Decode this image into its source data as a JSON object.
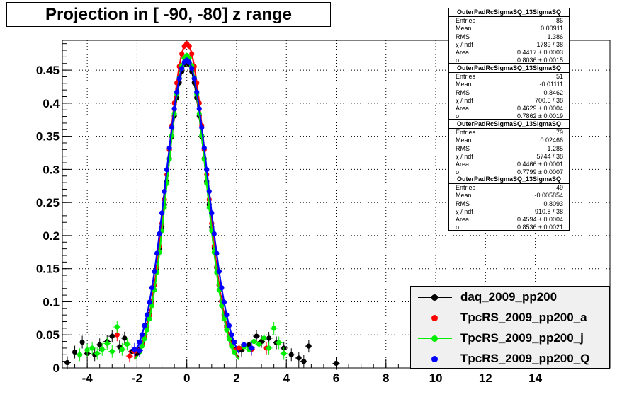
{
  "title": "Projection in [ -90, -80] z range",
  "chart_data": {
    "type": "scatter",
    "xlim": [
      -5,
      17
    ],
    "ylim": [
      0,
      0.495
    ],
    "x_ticks": [
      -4,
      -2,
      0,
      2,
      4,
      6,
      8,
      10,
      12,
      14
    ],
    "y_ticks": [
      0,
      0.05,
      0.1,
      0.15,
      0.2,
      0.25,
      0.3,
      0.35,
      0.4,
      0.45
    ],
    "y_tick_labels": [
      "0",
      "0.05",
      "0.1",
      "0.15",
      "0.2",
      "0.25",
      "0.3",
      "0.35",
      "0.4",
      "0.45"
    ],
    "grid": true,
    "legend_position": "bottom-right",
    "series": [
      {
        "name": "daq_2009_pp200",
        "color": "#000000",
        "sigma": 0.8036,
        "peak": 0.462,
        "points": [
          [
            -4.8,
            0.008
          ],
          [
            -4.5,
            0.024
          ],
          [
            -4.2,
            0.039
          ],
          [
            -4.0,
            0.022
          ],
          [
            -3.7,
            0.02
          ],
          [
            -3.5,
            0.035
          ],
          [
            -3.2,
            0.04
          ],
          [
            -3.0,
            0.048
          ],
          [
            -2.7,
            0.032
          ],
          [
            -2.5,
            0.045
          ],
          [
            -2.2,
            0.025
          ],
          [
            -2.0,
            0.022
          ],
          [
            2.2,
            0.027
          ],
          [
            2.5,
            0.035
          ],
          [
            2.8,
            0.048
          ],
          [
            3.0,
            0.04
          ],
          [
            3.3,
            0.045
          ],
          [
            3.6,
            0.038
          ],
          [
            3.9,
            0.03
          ],
          [
            4.2,
            0.02
          ],
          [
            4.5,
            0.015
          ],
          [
            4.7,
            0.01
          ],
          [
            4.9,
            0.033
          ],
          [
            6.0,
            0.007
          ]
        ]
      },
      {
        "name": "TpcRS_2009_pp200_a",
        "color": "#ff0000",
        "sigma": 0.7862,
        "peak": 0.49,
        "points": [
          [
            -2.8,
            0.05
          ],
          [
            -2.3,
            0.018
          ],
          [
            -2.1,
            0.025
          ],
          [
            2.1,
            0.03
          ],
          [
            2.6,
            0.028
          ],
          [
            3.2,
            0.03
          ]
        ]
      },
      {
        "name": "TpcRS_2009_pp200_j",
        "color": "#00ee00",
        "sigma": 0.7799,
        "peak": 0.472,
        "points": [
          [
            -4.3,
            0.02
          ],
          [
            -4.0,
            0.027
          ],
          [
            -3.8,
            0.03
          ],
          [
            -3.6,
            0.022
          ],
          [
            -3.4,
            0.028
          ],
          [
            -3.2,
            0.037
          ],
          [
            -3.0,
            0.025
          ],
          [
            -2.8,
            0.062
          ],
          [
            -2.6,
            0.028
          ],
          [
            -2.4,
            0.036
          ],
          [
            2.3,
            0.032
          ],
          [
            2.5,
            0.028
          ],
          [
            2.7,
            0.04
          ],
          [
            2.9,
            0.036
          ],
          [
            3.1,
            0.045
          ],
          [
            3.3,
            0.03
          ],
          [
            3.5,
            0.06
          ],
          [
            3.7,
            0.038
          ],
          [
            3.9,
            0.022
          ]
        ]
      },
      {
        "name": "TpcRS_2009_pp200_Q",
        "color": "#0000ff",
        "sigma": 0.8536,
        "peak": 0.465,
        "points": [
          [
            -2.1,
            0.028
          ],
          [
            -1.9,
            0.026
          ],
          [
            2.3,
            0.035
          ],
          [
            2.6,
            0.03
          ]
        ]
      }
    ],
    "stats": [
      {
        "title": "OuterPadRcSigmaSQ_13SigmaSQ",
        "rows": [
          {
            "label": "Entries",
            "value": "86"
          },
          {
            "label": "Mean",
            "value": "0.00911"
          },
          {
            "label": "RMS",
            "value": "1.386"
          },
          {
            "label": "χ  / ndf",
            "value": "1789 / 38"
          },
          {
            "label": "Area",
            "value": "0.4417 ± 0.0003"
          },
          {
            "label": "σ",
            "value": "0.8036 ± 0.0015"
          }
        ]
      },
      {
        "title": "OuterPadRcSigmaSQ_13SigmaSQ",
        "rows": [
          {
            "label": "Entries",
            "value": "51"
          },
          {
            "label": "Mean",
            "value": "-0.01111"
          },
          {
            "label": "RMS",
            "value": "0.8462"
          },
          {
            "label": "χ  / ndf",
            "value": "700.5 / 38"
          },
          {
            "label": "Area",
            "value": "0.4629 ± 0.0004"
          },
          {
            "label": "σ",
            "value": "0.7862 ± 0.0019"
          }
        ]
      },
      {
        "title": "OuterPadRcSigmaSQ_13SigmaSQ",
        "rows": [
          {
            "label": "Entries",
            "value": "79"
          },
          {
            "label": "Mean",
            "value": "0.02466"
          },
          {
            "label": "RMS",
            "value": "1.285"
          },
          {
            "label": "χ  / ndf",
            "value": "5744 / 38"
          },
          {
            "label": "Area",
            "value": "0.4466 ± 0.0001"
          },
          {
            "label": "σ",
            "value": "0.7799 ± 0.0007"
          }
        ]
      },
      {
        "title": "OuterPadRcSigmaSQ_13SigmaSQ",
        "rows": [
          {
            "label": "Entries",
            "value": "49"
          },
          {
            "label": "Mean",
            "value": "-0.005854"
          },
          {
            "label": "RMS",
            "value": "0.8093"
          },
          {
            "label": "χ  / ndf",
            "value": "910.8 / 38"
          },
          {
            "label": "Area",
            "value": "0.4594 ± 0.0004"
          },
          {
            "label": "σ",
            "value": "0.8536 ± 0.0021"
          }
        ]
      }
    ]
  }
}
